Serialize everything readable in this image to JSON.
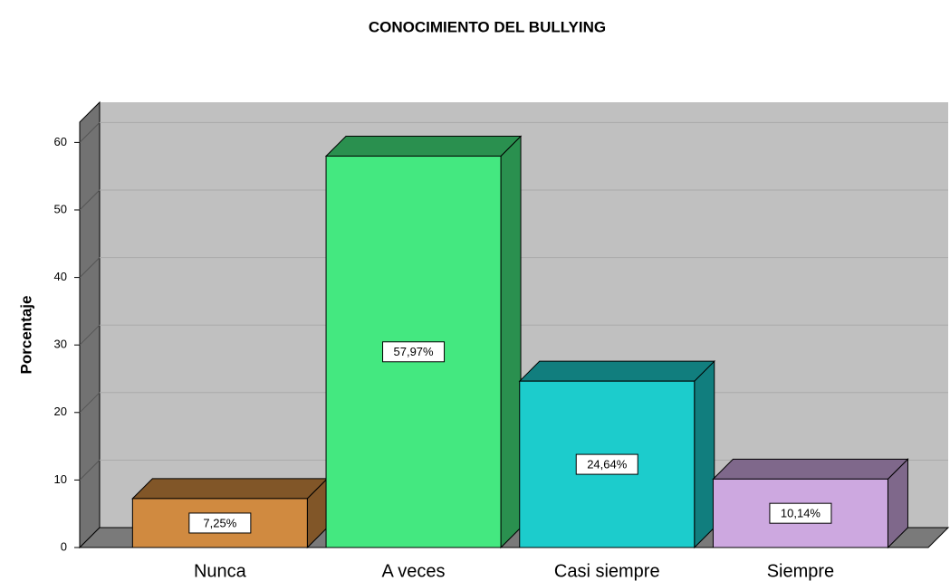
{
  "chart_data": {
    "type": "bar3d",
    "title": "CONOCIMIENTO DEL BULLYING",
    "y_label": "Porcentaje",
    "categories": [
      "Nunca",
      "A veces",
      "Casi siempre",
      "Siempre"
    ],
    "values": [
      7.25,
      57.97,
      24.64,
      10.14
    ],
    "value_labels": [
      "7,25%",
      "57,97%",
      "24,64%",
      "10,14%"
    ],
    "colors": [
      "#d08a40",
      "#44e880",
      "#1ccccc",
      "#cda8e0"
    ],
    "ylim": [
      0,
      63
    ],
    "yticks": [
      0,
      10,
      20,
      30,
      40,
      50,
      60
    ],
    "grid": true
  }
}
